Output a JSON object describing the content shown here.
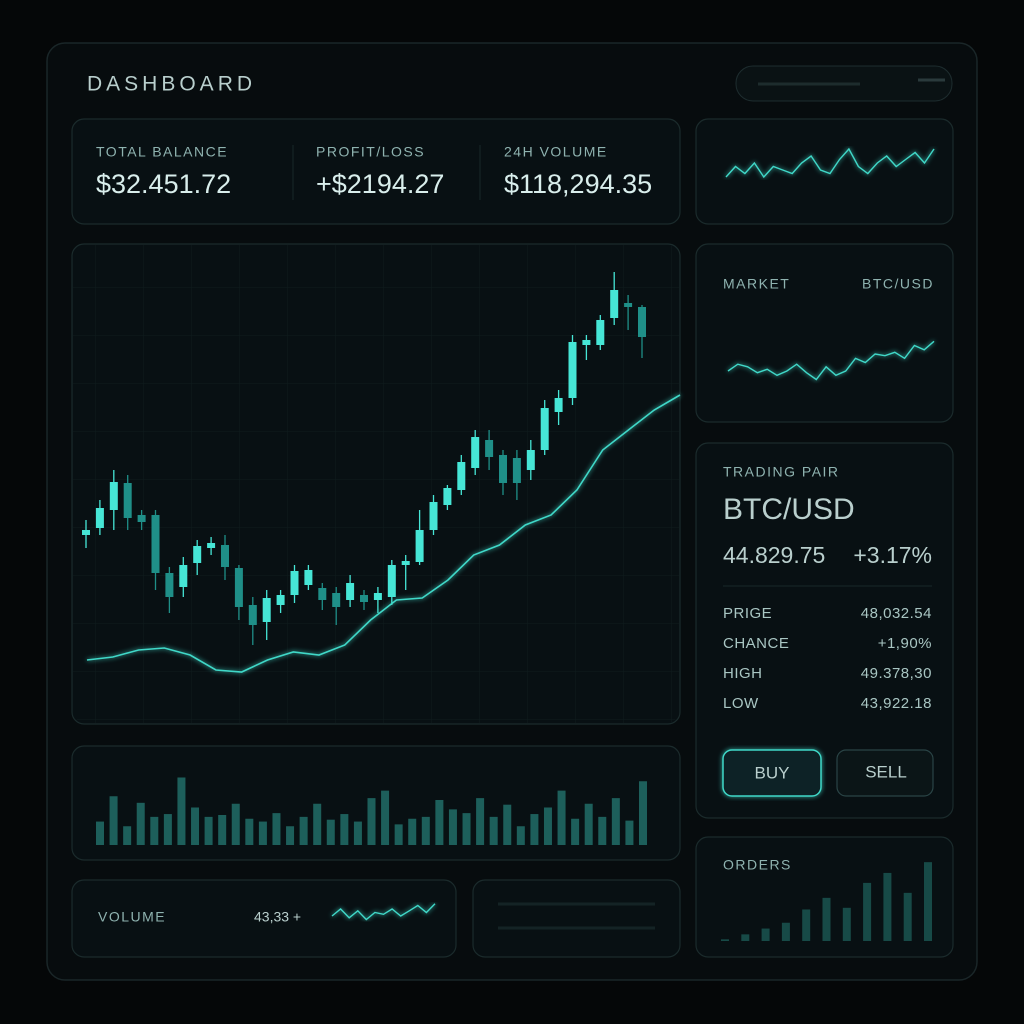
{
  "header": {
    "title": "DASHBOARD"
  },
  "stats": [
    {
      "label": "TOTAL BALANCE",
      "value": "$32.451.72"
    },
    {
      "label": "PROFIT/LOSS",
      "value": "+$2194.27"
    },
    {
      "label": "24H  VOLUME",
      "value": "$118,294.35"
    }
  ],
  "market": {
    "label": "MARKET",
    "pair": "BTC/USD"
  },
  "trading": {
    "label": "TRADING PAIR",
    "pair": "BTC/USD",
    "price": "44.829.75",
    "change": "+3.17%",
    "rows": [
      [
        "PRIGE",
        "48,032.54"
      ],
      [
        "CHANCE",
        "+1,90%"
      ],
      [
        "HIGH",
        "49.378,30"
      ],
      [
        "LOW",
        "43,922.18"
      ]
    ],
    "buy": "BUY",
    "sell": "SELL"
  },
  "volume": {
    "label": "VOLUME",
    "value": "43,33 +"
  },
  "orders": {
    "label": "ORDERS"
  },
  "charts": {
    "candles": {
      "type": "candlestick",
      "ylim": [
        0,
        480
      ],
      "up_color": "#46e6d6",
      "down_color": "#1f8f88",
      "line_color": "#3fd8c8",
      "open": [
        190,
        197,
        215,
        242,
        210,
        210,
        152,
        138,
        162,
        177,
        180,
        157,
        120,
        103,
        120,
        130,
        140,
        137,
        132,
        125,
        130,
        125,
        128,
        160,
        163,
        195,
        220,
        235,
        257,
        285,
        270,
        267,
        255,
        275,
        313,
        327,
        380,
        380,
        407,
        422,
        418
      ],
      "close": [
        195,
        217,
        243,
        207,
        203,
        152,
        128,
        160,
        179,
        182,
        158,
        118,
        100,
        127,
        130,
        154,
        155,
        125,
        118,
        142,
        123,
        132,
        160,
        164,
        195,
        223,
        237,
        263,
        288,
        268,
        242,
        242,
        275,
        317,
        327,
        383,
        385,
        405,
        435,
        418,
        388
      ],
      "high": [
        205,
        225,
        255,
        250,
        215,
        215,
        158,
        168,
        185,
        188,
        190,
        160,
        128,
        135,
        135,
        160,
        160,
        142,
        138,
        150,
        135,
        138,
        165,
        170,
        215,
        230,
        240,
        270,
        295,
        295,
        275,
        275,
        285,
        325,
        335,
        390,
        390,
        410,
        453,
        430,
        420
      ],
      "low": [
        177,
        190,
        195,
        195,
        195,
        135,
        112,
        128,
        150,
        170,
        145,
        105,
        80,
        85,
        112,
        122,
        135,
        115,
        100,
        118,
        115,
        112,
        120,
        135,
        160,
        190,
        215,
        230,
        250,
        255,
        230,
        225,
        245,
        270,
        300,
        320,
        365,
        375,
        400,
        395,
        367
      ],
      "ma": [
        65,
        68,
        75,
        77,
        70,
        55,
        53,
        65,
        73,
        70,
        80,
        105,
        125,
        127,
        145,
        170,
        180,
        200,
        210,
        235,
        275,
        295,
        315,
        330
      ]
    },
    "volume_bars": {
      "type": "bar",
      "ylim": [
        0,
        80
      ],
      "color": "#1d5f5b",
      "values": [
        25,
        52,
        20,
        45,
        30,
        33,
        72,
        40,
        30,
        32,
        44,
        28,
        25,
        34,
        20,
        30,
        44,
        27,
        33,
        25,
        50,
        58,
        22,
        28,
        30,
        48,
        38,
        34,
        50,
        30,
        43,
        20,
        33,
        40,
        58,
        28,
        44,
        30,
        50,
        26,
        68
      ]
    },
    "balance_spark": {
      "type": "line",
      "ylim": [
        0,
        100
      ],
      "color": "#3fd8c8",
      "values": [
        40,
        55,
        45,
        60,
        40,
        55,
        50,
        45,
        60,
        70,
        50,
        45,
        65,
        80,
        55,
        45,
        60,
        70,
        55,
        65,
        75,
        60,
        80
      ]
    },
    "market_spark": {
      "type": "line",
      "ylim": [
        0,
        100
      ],
      "color": "#3fd8c8",
      "values": [
        40,
        48,
        45,
        38,
        42,
        35,
        40,
        48,
        38,
        30,
        45,
        35,
        40,
        55,
        50,
        60,
        58,
        62,
        55,
        70,
        65,
        75
      ]
    },
    "volume_spark": {
      "type": "line",
      "ylim": [
        0,
        100
      ],
      "color": "#3fd8c8",
      "values": [
        40,
        60,
        35,
        55,
        30,
        50,
        45,
        60,
        40,
        55,
        70,
        50,
        75
      ]
    },
    "orders_bars": {
      "type": "bar",
      "ylim": [
        0,
        100
      ],
      "color": "#174a47",
      "values": [
        2,
        8,
        15,
        22,
        38,
        52,
        40,
        70,
        82,
        58,
        95
      ]
    }
  }
}
